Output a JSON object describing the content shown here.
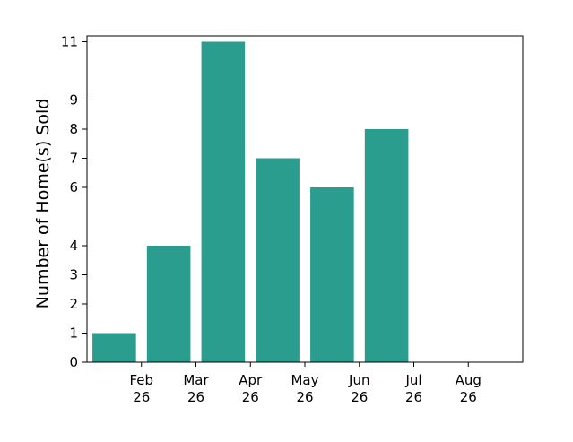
{
  "chart_data": {
    "type": "bar",
    "title": "",
    "xlabel": "",
    "ylabel": "Number of Home(s) Sold",
    "bar_color": "#2a9d8f",
    "x_ticks": [
      {
        "month": "Feb",
        "year": "26"
      },
      {
        "month": "Mar",
        "year": "26"
      },
      {
        "month": "Apr",
        "year": "26"
      },
      {
        "month": "May",
        "year": "26"
      },
      {
        "month": "Jun",
        "year": "26"
      },
      {
        "month": "Jul",
        "year": "26"
      },
      {
        "month": "Aug",
        "year": "26"
      }
    ],
    "categories": [
      "Feb 26",
      "Mar 26",
      "Apr 26",
      "May 26",
      "Jun 26",
      "Jul 26"
    ],
    "values": [
      1,
      4,
      11,
      7,
      6,
      8
    ],
    "y_ticks": [
      0,
      1,
      2,
      3,
      4,
      6,
      7,
      8,
      9,
      11
    ],
    "ylim": [
      0,
      11.2
    ],
    "grid": false,
    "legend": "none"
  }
}
